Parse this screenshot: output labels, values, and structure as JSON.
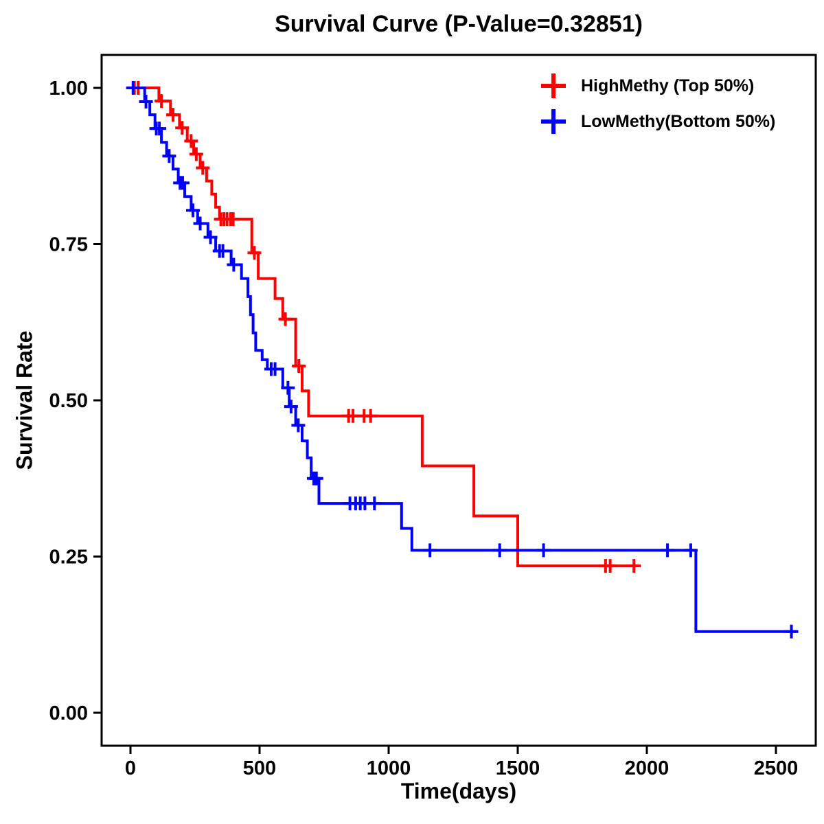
{
  "chart_data": {
    "type": "line",
    "subtype": "kaplan-meier-step",
    "title": "Survival Curve (P-Value=0.32851)",
    "p_value": "0.32851",
    "xlabel": "Time(days)",
    "ylabel": "Survival Rate",
    "xlim": [
      -110,
      2650
    ],
    "ylim": [
      -0.05,
      1.05
    ],
    "x_ticks": [
      0,
      500,
      1000,
      1500,
      2000,
      2500
    ],
    "x_tick_labels": [
      "0",
      "500",
      "1000",
      "1500",
      "2000",
      "2500"
    ],
    "y_ticks": [
      0.0,
      0.25,
      0.5,
      0.75,
      1.0
    ],
    "y_tick_labels": [
      "0.00",
      "0.25",
      "0.50",
      "0.75",
      "1.00"
    ],
    "grid": false,
    "legend_position": "top-right",
    "series": [
      {
        "name": "HighMethy (Top 50%)",
        "color": "#FF0000",
        "steps": [
          [
            0,
            1.0
          ],
          [
            110,
            0.979
          ],
          [
            155,
            0.957
          ],
          [
            190,
            0.936
          ],
          [
            220,
            0.915
          ],
          [
            245,
            0.894
          ],
          [
            270,
            0.872
          ],
          [
            295,
            0.851
          ],
          [
            315,
            0.83
          ],
          [
            330,
            0.809
          ],
          [
            345,
            0.79
          ],
          [
            470,
            0.736
          ],
          [
            495,
            0.695
          ],
          [
            560,
            0.663
          ],
          [
            590,
            0.63
          ],
          [
            640,
            0.555
          ],
          [
            665,
            0.515
          ],
          [
            690,
            0.475
          ],
          [
            1130,
            0.395
          ],
          [
            1330,
            0.315
          ],
          [
            1500,
            0.235
          ],
          [
            1960,
            0.235
          ]
        ],
        "censors": [
          [
            15,
            1.0
          ],
          [
            30,
            1.0
          ],
          [
            120,
            0.979
          ],
          [
            165,
            0.957
          ],
          [
            200,
            0.936
          ],
          [
            235,
            0.915
          ],
          [
            255,
            0.894
          ],
          [
            280,
            0.872
          ],
          [
            350,
            0.79
          ],
          [
            362,
            0.79
          ],
          [
            374,
            0.79
          ],
          [
            388,
            0.79
          ],
          [
            398,
            0.79
          ],
          [
            480,
            0.736
          ],
          [
            600,
            0.63
          ],
          [
            652,
            0.555
          ],
          [
            845,
            0.475
          ],
          [
            862,
            0.475
          ],
          [
            905,
            0.475
          ],
          [
            930,
            0.475
          ],
          [
            1840,
            0.235
          ],
          [
            1858,
            0.235
          ],
          [
            1950,
            0.235
          ]
        ]
      },
      {
        "name": "LowMethy(Bottom 50%)",
        "color": "#0000FF",
        "steps": [
          [
            0,
            1.0
          ],
          [
            55,
            0.978
          ],
          [
            75,
            0.957
          ],
          [
            95,
            0.935
          ],
          [
            120,
            0.913
          ],
          [
            140,
            0.891
          ],
          [
            165,
            0.87
          ],
          [
            185,
            0.848
          ],
          [
            210,
            0.826
          ],
          [
            235,
            0.804
          ],
          [
            260,
            0.783
          ],
          [
            300,
            0.761
          ],
          [
            330,
            0.739
          ],
          [
            390,
            0.717
          ],
          [
            430,
            0.695
          ],
          [
            455,
            0.666
          ],
          [
            465,
            0.637
          ],
          [
            475,
            0.608
          ],
          [
            485,
            0.58
          ],
          [
            510,
            0.565
          ],
          [
            530,
            0.55
          ],
          [
            590,
            0.52
          ],
          [
            615,
            0.49
          ],
          [
            640,
            0.46
          ],
          [
            665,
            0.435
          ],
          [
            685,
            0.408
          ],
          [
            700,
            0.375
          ],
          [
            730,
            0.335
          ],
          [
            1050,
            0.295
          ],
          [
            1090,
            0.26
          ],
          [
            2190,
            0.13
          ],
          [
            2580,
            0.13
          ]
        ],
        "censors": [
          [
            10,
            1.0
          ],
          [
            60,
            0.978
          ],
          [
            100,
            0.935
          ],
          [
            112,
            0.935
          ],
          [
            150,
            0.891
          ],
          [
            192,
            0.848
          ],
          [
            202,
            0.848
          ],
          [
            242,
            0.804
          ],
          [
            270,
            0.783
          ],
          [
            310,
            0.761
          ],
          [
            345,
            0.739
          ],
          [
            358,
            0.739
          ],
          [
            400,
            0.717
          ],
          [
            545,
            0.55
          ],
          [
            560,
            0.55
          ],
          [
            610,
            0.52
          ],
          [
            622,
            0.49
          ],
          [
            650,
            0.46
          ],
          [
            710,
            0.375
          ],
          [
            720,
            0.375
          ],
          [
            850,
            0.335
          ],
          [
            872,
            0.335
          ],
          [
            890,
            0.335
          ],
          [
            908,
            0.335
          ],
          [
            945,
            0.335
          ],
          [
            1160,
            0.26
          ],
          [
            1430,
            0.26
          ],
          [
            1600,
            0.26
          ],
          [
            2080,
            0.26
          ],
          [
            2170,
            0.26
          ],
          [
            2560,
            0.13
          ]
        ]
      }
    ]
  }
}
